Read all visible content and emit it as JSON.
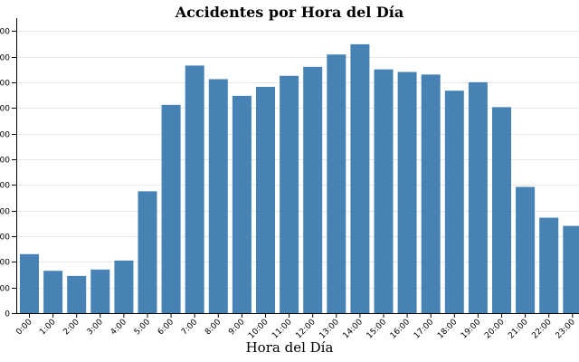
{
  "chart_data": {
    "type": "bar",
    "title": "Accidentes por Hora del Día",
    "xlabel": "Hora del Día",
    "ylabel": "",
    "categories": [
      "0:00",
      "1:00",
      "2:00",
      "3:00",
      "4:00",
      "5:00",
      "6:00",
      "7:00",
      "8:00",
      "9:00",
      "10:00",
      "11:00",
      "12:00",
      "13:00",
      "14:00",
      "15:00",
      "16:00",
      "17:00",
      "18:00",
      "19:00",
      "20:00",
      "21:00",
      "22:00",
      "23:00"
    ],
    "values": [
      230,
      165,
      145,
      170,
      205,
      475,
      812,
      965,
      912,
      847,
      882,
      925,
      960,
      1008,
      1048,
      950,
      940,
      930,
      867,
      900,
      803,
      492,
      372,
      340
    ],
    "ylim": [
      0,
      1150
    ],
    "ytick_step": 100,
    "grid": true,
    "bar_color": "#4682b4",
    "grid_color": "#e6e6e6"
  }
}
